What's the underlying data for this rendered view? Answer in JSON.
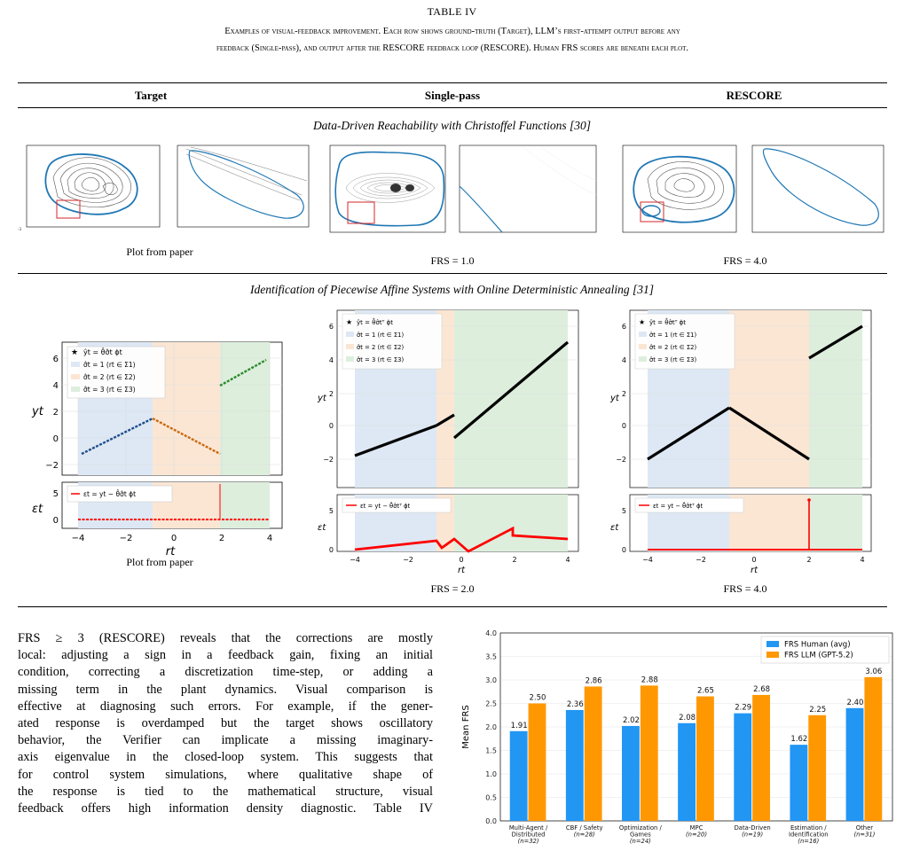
{
  "table": {
    "label": "TABLE IV",
    "caption_line1": "Examples of visual-feedback improvement. Each row shows ground-truth (Target), LLM’s first-attempt output before any",
    "caption_line2": "feedback (Single-pass), and output after the RESCORE feedback loop (RESCORE). Human FRS scores are beneath each plot.",
    "columns": [
      "Target",
      "Single-pass",
      "RESCORE"
    ],
    "rows": [
      {
        "title": "Data-Driven Reachability with Christoffel Functions [30]",
        "target_caption": "Plot from paper",
        "single_pass_score": "FRS = 1.0",
        "rescore_score": "FRS = 4.0"
      },
      {
        "title": "Identification of Piecewise Affine Systems with Online Deterministic Annealing [31]",
        "target_caption": "Plot from paper",
        "single_pass_score": "FRS = 2.0",
        "rescore_score": "FRS = 4.0",
        "legend": {
          "target_line": "ŷt = θ̂σ̂t ϕt",
          "single_line": "ŷt = θ̂σ̂tᵀ ϕt",
          "region1": "σ̂t = 1 (rt ∈ Σ1)",
          "region2": "σ̂t = 2 (rt ∈ Σ2)",
          "region3": "σ̂t = 3 (rt ∈ Σ3)",
          "err_target": "εt = yt − θ̂σ̂t ϕt",
          "err_single": "εt = yt − θ̂σ̂tᵀ ϕt"
        },
        "ylabel_top": "yt",
        "ylabel_bottom": "εt",
        "xlabel": "rt"
      }
    ]
  },
  "paragraph": [
    "FRS ≥ 3 (RESCORE) reveals that the corrections are mostly",
    "local: adjusting a sign in a feedback gain, fixing an initial",
    "condition, correcting a discretization time-step, or adding a",
    "missing term in the plant dynamics. Visual comparison is",
    "effective at diagnosing such errors. For example, if the gener-",
    "ated response is overdamped but the target shows oscillatory",
    "behavior, the Verifier can implicate a missing imaginary-",
    "axis eigenvalue in the closed-loop system. This suggests that",
    "for control system simulations, where qualitative shape of",
    "the response is tied to the mathematical structure, visual",
    "feedback offers high information density diagnostic. Table IV"
  ],
  "colors": {
    "human": "#2196f3",
    "llm": "#ff9800",
    "reach_curve": "#1f77b4",
    "region1": "#dde8f4",
    "region2": "#fbe6d4",
    "region3": "#ddeedd",
    "error": "#ff0000"
  },
  "chart_data": {
    "type": "bar",
    "ylabel": "Mean FRS",
    "ylim": [
      0,
      4.0
    ],
    "yticks": [
      "0.0",
      "0.5",
      "1.0",
      "1.5",
      "2.0",
      "2.5",
      "3.0",
      "3.5",
      "4.0"
    ],
    "legend_position": "top-right",
    "grid": true,
    "categories": [
      [
        "Multi-Agent /",
        "Distributed",
        "(n=32)"
      ],
      [
        "CBF / Safety",
        "(n=28)"
      ],
      [
        "Optimization /",
        "Games",
        "(n=24)"
      ],
      [
        "MPC",
        "(n=20)"
      ],
      [
        "Data-Driven",
        "(n=19)"
      ],
      [
        "Estimation /",
        "Identification",
        "(n=16)"
      ],
      [
        "Other",
        "(n=31)"
      ]
    ],
    "series": [
      {
        "name": "FRS Human (avg)",
        "values": [
          1.91,
          2.36,
          2.02,
          2.08,
          2.29,
          1.62,
          2.4
        ],
        "labels": [
          "1.91",
          "2.36",
          "2.02",
          "2.08",
          "2.29",
          "1.62",
          "2.40"
        ]
      },
      {
        "name": "FRS LLM (GPT-5.2)",
        "values": [
          2.5,
          2.86,
          2.88,
          2.65,
          2.68,
          2.25,
          3.06
        ],
        "labels": [
          "2.50",
          "2.86",
          "2.88",
          "2.65",
          "2.68",
          "2.25",
          "3.06"
        ]
      }
    ]
  }
}
